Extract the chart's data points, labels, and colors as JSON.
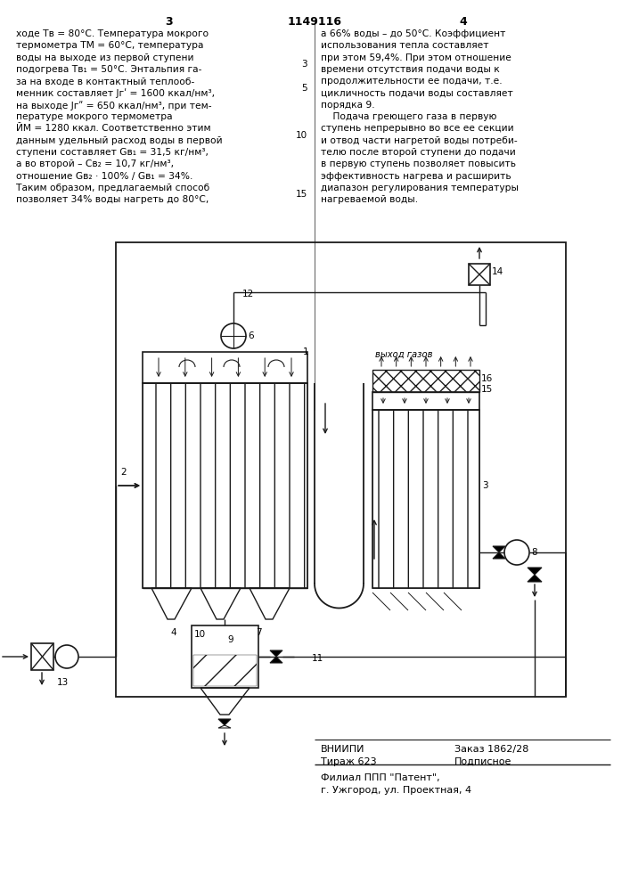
{
  "bg_color": "#ffffff",
  "lc": "#1a1a1a",
  "footer_vniiipi": "ВНИИПИ",
  "footer_order": "Заказ 1862/28",
  "footer_tirazh": "Тираж 623",
  "footer_podpisnoe": "Подписное",
  "footer_filial": "Филиал ППП \"Патент\",",
  "footer_addr": "г. Ужгород, ул. Проектная, 4",
  "pn_left": "3",
  "pn_center": "1149116",
  "pn_right": "4"
}
